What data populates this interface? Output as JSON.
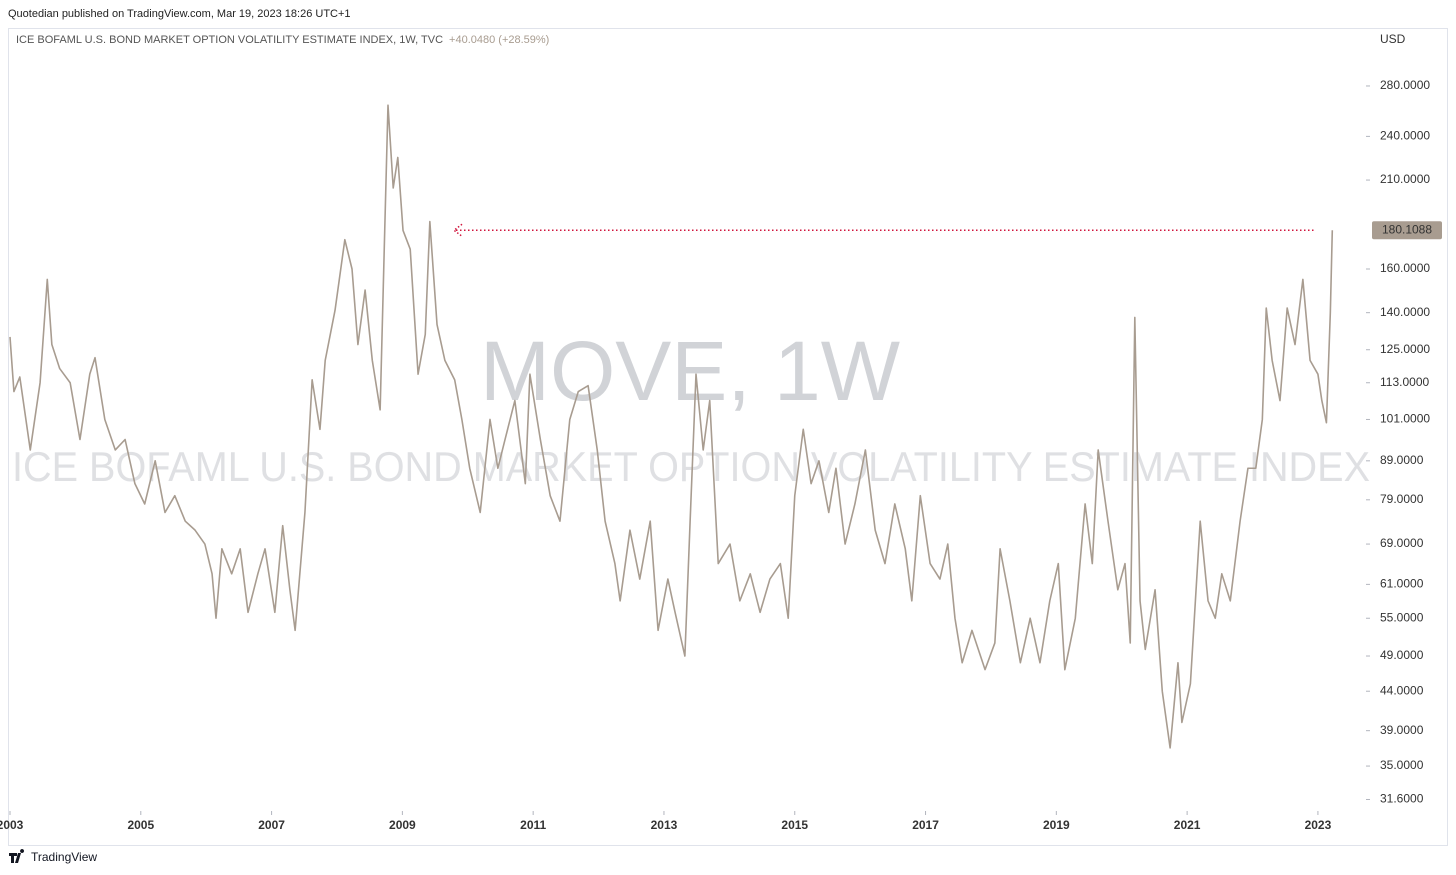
{
  "chart_data": {
    "type": "line",
    "publisher": "Quotedian published on TradingView.com, Mar 19, 2023 18:26 UTC+1",
    "title": "ICE BOFAML U.S. BOND MARKET OPTION VOLATILITY ESTIMATE INDEX, 1W, TVC",
    "change_label": "+40.0480 (+28.59%)",
    "watermark": "MOVE, 1W",
    "watermark_subtitle": "ICE BOFAML U.S. BOND MARKET OPTION VOLATILITY ESTIMATE INDEX",
    "currency": "USD",
    "brand": "TradingView",
    "log_scale": true,
    "grid": false,
    "xlim": [
      2003,
      2023.72
    ],
    "ylim": [
      30.6,
      334.3
    ],
    "xticks": [
      {
        "value": 2003,
        "label": "2003"
      },
      2005,
      2007,
      2009,
      2011,
      2013,
      2015,
      2017,
      2019,
      2021,
      2023
    ],
    "yticks": [
      {
        "value": 280,
        "label": "280.0000"
      },
      {
        "value": 240,
        "label": "240.0000"
      },
      {
        "value": 210,
        "label": "210.0000"
      },
      {
        "value": 160,
        "label": "160.0000"
      },
      {
        "value": 140,
        "label": "140.0000"
      },
      {
        "value": 125,
        "label": "125.0000"
      },
      {
        "value": 113,
        "label": "113.0000"
      },
      {
        "value": 101,
        "label": "101.0000"
      },
      {
        "value": 89,
        "label": "89.0000"
      },
      {
        "value": 79,
        "label": "79.0000"
      },
      {
        "value": 69,
        "label": "69.0000"
      },
      {
        "value": 61,
        "label": "61.0000"
      },
      {
        "value": 55,
        "label": "55.0000"
      },
      {
        "value": 49,
        "label": "49.0000"
      },
      {
        "value": 44,
        "label": "44.0000"
      },
      {
        "value": 39,
        "label": "39.0000"
      },
      {
        "value": 35,
        "label": "35.0000"
      },
      {
        "value": 31.6,
        "label": "31.6000"
      }
    ],
    "x": [
      2003.0,
      2003.06,
      2003.15,
      2003.31,
      2003.46,
      2003.57,
      2003.64,
      2003.76,
      2003.92,
      2004.07,
      2004.22,
      2004.3,
      2004.45,
      2004.61,
      2004.76,
      2004.91,
      2005.06,
      2005.22,
      2005.37,
      2005.52,
      2005.68,
      2005.83,
      2005.98,
      2006.09,
      2006.15,
      2006.24,
      2006.39,
      2006.52,
      2006.64,
      2006.79,
      2006.9,
      2007.05,
      2007.17,
      2007.28,
      2007.36,
      2007.51,
      2007.62,
      2007.74,
      2007.82,
      2007.97,
      2008.12,
      2008.23,
      2008.32,
      2008.43,
      2008.54,
      2008.66,
      2008.73,
      2008.78,
      2008.86,
      2008.93,
      2009.01,
      2009.12,
      2009.24,
      2009.35,
      2009.42,
      2009.53,
      2009.65,
      2009.8,
      2009.91,
      2010.03,
      2010.19,
      2010.34,
      2010.46,
      2010.57,
      2010.72,
      2010.88,
      2010.95,
      2011.11,
      2011.26,
      2011.41,
      2011.56,
      2011.69,
      2011.84,
      2011.98,
      2012.1,
      2012.25,
      2012.33,
      2012.48,
      2012.63,
      2012.79,
      2012.91,
      2013.06,
      2013.17,
      2013.32,
      2013.4,
      2013.49,
      2013.6,
      2013.7,
      2013.83,
      2014.01,
      2014.16,
      2014.32,
      2014.47,
      2014.62,
      2014.78,
      2014.9,
      2015.0,
      2015.13,
      2015.25,
      2015.37,
      2015.52,
      2015.63,
      2015.77,
      2015.92,
      2016.08,
      2016.23,
      2016.38,
      2016.53,
      2016.69,
      2016.79,
      2016.92,
      2017.07,
      2017.22,
      2017.34,
      2017.45,
      2017.56,
      2017.71,
      2017.91,
      2018.06,
      2018.14,
      2018.29,
      2018.45,
      2018.6,
      2018.75,
      2018.9,
      2019.03,
      2019.13,
      2019.29,
      2019.44,
      2019.55,
      2019.64,
      2019.79,
      2019.94,
      2020.05,
      2020.13,
      2020.2,
      2020.28,
      2020.36,
      2020.51,
      2020.62,
      2020.74,
      2020.86,
      2020.92,
      2021.05,
      2021.2,
      2021.32,
      2021.43,
      2021.53,
      2021.66,
      2021.81,
      2021.93,
      2022.05,
      2022.15,
      2022.21,
      2022.3,
      2022.42,
      2022.53,
      2022.65,
      2022.77,
      2022.88,
      2023.0,
      2023.06,
      2023.13,
      2023.19,
      2023.22
    ],
    "series": [
      {
        "color": "#a89c90",
        "values": [
          130,
          110,
          115,
          92,
          113,
          155,
          127,
          118,
          113,
          95,
          116,
          122,
          101,
          92,
          95,
          83,
          78,
          89,
          76,
          80,
          74,
          72,
          69,
          63,
          55,
          68,
          63,
          68,
          56,
          63,
          68,
          56,
          73,
          60,
          53,
          76,
          114,
          98,
          121,
          141,
          175,
          160,
          127,
          150,
          121,
          104,
          180,
          264,
          205,
          225,
          180,
          170,
          116,
          131,
          185,
          135,
          121,
          114,
          101,
          87,
          76,
          101,
          87,
          95,
          107,
          83,
          116,
          95,
          80,
          74,
          101,
          110,
          112,
          92,
          74,
          65,
          58,
          72,
          62,
          74,
          53,
          62,
          56,
          49,
          74,
          116,
          92,
          107,
          65,
          69,
          58,
          63,
          56,
          62,
          65,
          55,
          80,
          98,
          83,
          89,
          76,
          87,
          69,
          78,
          92,
          72,
          65,
          78,
          68,
          58,
          80,
          65,
          62,
          69,
          55,
          48,
          53,
          47,
          51,
          68,
          58,
          48,
          55,
          48,
          58,
          65,
          47,
          55,
          78,
          65,
          92,
          74,
          60,
          65,
          51,
          138,
          58,
          50,
          60,
          44,
          37,
          48,
          40,
          45,
          74,
          58,
          55,
          63,
          58,
          74,
          87,
          87,
          101,
          142,
          121,
          107,
          142,
          127,
          155,
          121,
          116,
          107,
          100,
          140.0608,
          180.1088
        ]
      }
    ]
  }
}
